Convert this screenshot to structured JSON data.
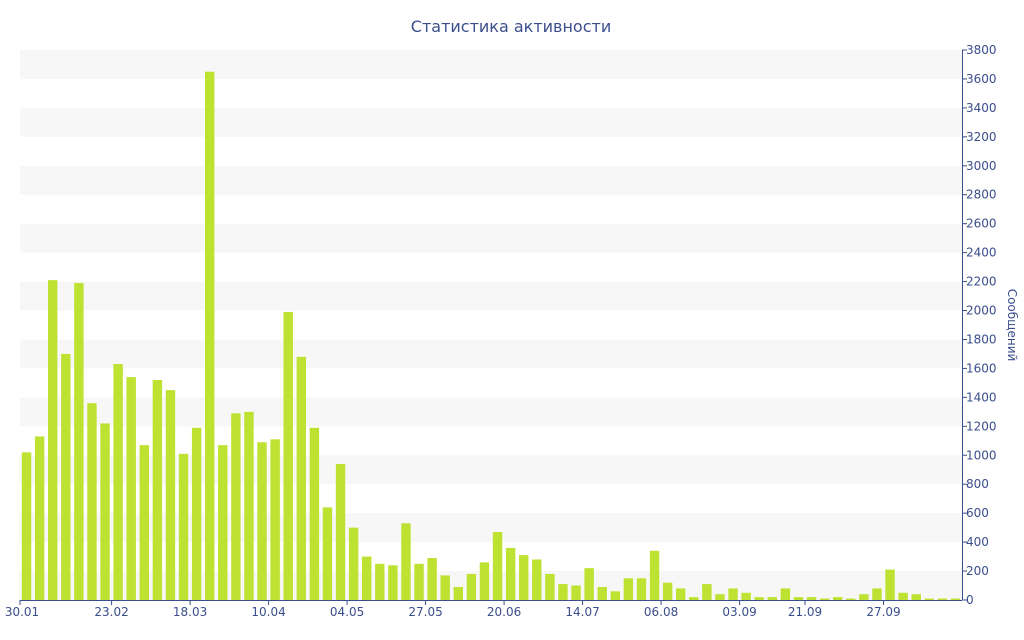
{
  "chart_data": {
    "type": "bar",
    "title": "Статистика активности",
    "xlabel": "",
    "ylabel": "Сообщений",
    "ylim": [
      0,
      3800
    ],
    "y_ticks": [
      0,
      200,
      400,
      600,
      800,
      1000,
      1200,
      1400,
      1600,
      1800,
      2000,
      2200,
      2400,
      2600,
      2800,
      3000,
      3200,
      3400,
      3600,
      3800
    ],
    "y_axis_position": "right",
    "grid": "alternating horizontal bands",
    "legend": "none",
    "x_tick_labels": [
      "30.01",
      "23.02",
      "18.03",
      "10.04",
      "04.05",
      "27.05",
      "20.06",
      "14.07",
      "06.08",
      "03.09",
      "21.09",
      "27.09"
    ],
    "x_tick_bar_index": [
      0,
      7,
      13,
      19,
      25,
      31,
      37,
      43,
      49,
      55,
      60,
      66
    ],
    "values": [
      1020,
      1130,
      2210,
      1700,
      2190,
      1360,
      1220,
      1630,
      1540,
      1070,
      1520,
      1450,
      1010,
      1190,
      3650,
      1070,
      1290,
      1300,
      1090,
      1110,
      1990,
      1680,
      1190,
      640,
      940,
      500,
      300,
      250,
      240,
      530,
      250,
      290,
      170,
      90,
      180,
      260,
      470,
      360,
      310,
      280,
      180,
      110,
      100,
      220,
      90,
      60,
      150,
      150,
      340,
      120,
      80,
      20,
      110,
      40,
      80,
      50,
      20,
      20,
      80,
      20,
      20,
      10,
      20,
      10,
      40,
      80,
      210,
      50,
      40,
      10,
      10,
      10
    ],
    "colors": {
      "bar": "#bde232",
      "band": "#f7f7f7",
      "axis": "#3a4e8c",
      "text": "#3a4e8c"
    }
  }
}
